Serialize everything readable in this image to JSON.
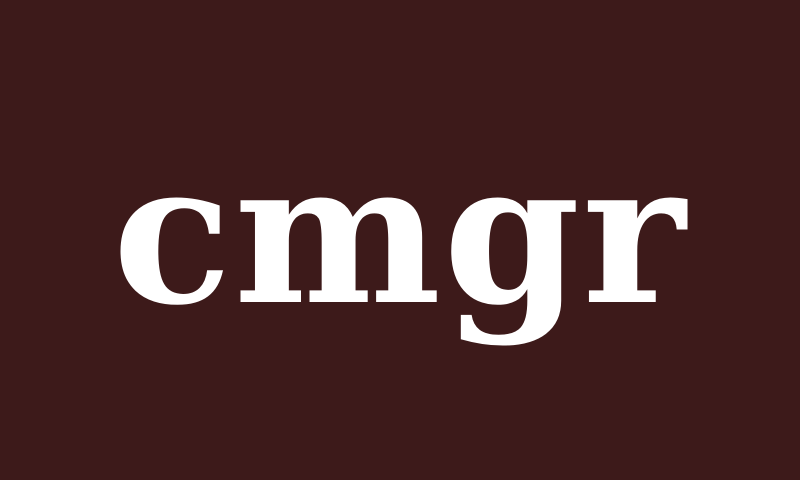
{
  "wordmark": {
    "text": "cmgr"
  },
  "colors": {
    "background": "#3d1a1a",
    "text": "#ffffff"
  }
}
